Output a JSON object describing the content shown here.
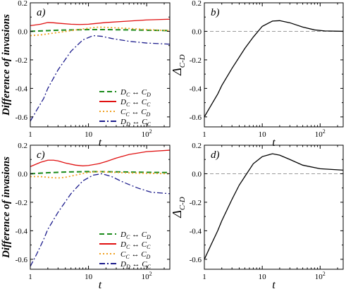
{
  "figure": {
    "ylabel_shared": "Difference of invasions"
  },
  "chart_data": [
    {
      "id": "a",
      "type": "line",
      "panel_label": "a)",
      "xlabel": "t",
      "ylabel": "Difference of invasions",
      "xscale": "log",
      "xlim": [
        1,
        250
      ],
      "ylim": [
        -0.67,
        0.2
      ],
      "xticks": [
        1,
        10,
        100
      ],
      "xtick_labels": [
        {
          "base": "1"
        },
        {
          "base": "10"
        },
        {
          "base": "10",
          "exp": "2"
        }
      ],
      "yticks": [
        -0.6,
        -0.4,
        -0.2,
        0.0,
        0.2
      ],
      "ytick_labels": [
        "-0.6",
        "-0.4",
        "-0.2",
        "0.0",
        "0.2"
      ],
      "legend_placement": "lower-right",
      "series": [
        {
          "name_main": "D",
          "name_sub1": "C",
          "arrow": "↔",
          "name_main2": "C",
          "name_sub2": "D",
          "color": "#1a8a1a",
          "style": "dashed",
          "x": [
            1,
            1.5,
            2,
            3,
            5,
            10,
            20,
            50,
            100,
            250
          ],
          "y": [
            0.0,
            0.003,
            0.005,
            0.008,
            0.01,
            0.012,
            0.012,
            0.01,
            0.008,
            0.005
          ]
        },
        {
          "name_main": "D",
          "name_sub1": "C",
          "arrow": "↔",
          "name_main2": "C",
          "name_sub2": "C",
          "color": "#e01010",
          "style": "solid",
          "x": [
            1,
            1.5,
            2,
            2.5,
            3,
            5,
            7,
            10,
            20,
            50,
            100,
            250
          ],
          "y": [
            0.04,
            0.05,
            0.062,
            0.06,
            0.057,
            0.05,
            0.048,
            0.05,
            0.062,
            0.072,
            0.08,
            0.085
          ]
        },
        {
          "name_main": "C",
          "name_sub1": "C",
          "arrow": "↔",
          "name_main2": "C",
          "name_sub2": "D",
          "color": "#f0a020",
          "style": "dotted",
          "x": [
            1,
            1.5,
            2,
            3,
            5,
            10,
            15,
            20,
            50,
            100,
            250
          ],
          "y": [
            -0.03,
            -0.025,
            -0.018,
            -0.008,
            0.005,
            0.022,
            0.03,
            0.028,
            0.02,
            0.012,
            0.005
          ]
        },
        {
          "name_main": "D",
          "name_sub1": "D",
          "arrow": "↔",
          "name_main2": "C",
          "name_sub2": "C",
          "color": "#1c1c8c",
          "style": "dashdot",
          "x": [
            1,
            1.3,
            1.7,
            2,
            3,
            5,
            8,
            12,
            17,
            25,
            50,
            100,
            250
          ],
          "y": [
            -0.63,
            -0.55,
            -0.47,
            -0.4,
            -0.27,
            -0.14,
            -0.06,
            -0.03,
            -0.035,
            -0.05,
            -0.07,
            -0.082,
            -0.09
          ]
        }
      ]
    },
    {
      "id": "b",
      "type": "line",
      "panel_label": "b)",
      "xlabel": "t",
      "ylabel_main": "Δ",
      "ylabel_sub": "C-D",
      "xscale": "log",
      "xlim": [
        1,
        250
      ],
      "ylim": [
        -0.67,
        0.2
      ],
      "xticks": [
        1,
        10,
        100
      ],
      "xtick_labels": [
        {
          "base": "1"
        },
        {
          "base": "10"
        },
        {
          "base": "10",
          "exp": "2"
        }
      ],
      "yticks": [
        -0.6,
        -0.4,
        -0.2,
        0.0,
        0.2
      ],
      "ytick_labels": [
        "-0.6",
        "-0.4",
        "-0.2",
        "0.0",
        "0.2"
      ],
      "reference_line_y": 0.0,
      "series": [
        {
          "color": "#000000",
          "style": "solid",
          "x": [
            1,
            1.3,
            1.7,
            2,
            3,
            5,
            7,
            10,
            15,
            20,
            30,
            50,
            80,
            120,
            250
          ],
          "y": [
            -0.6,
            -0.52,
            -0.44,
            -0.38,
            -0.26,
            -0.12,
            -0.04,
            0.035,
            0.072,
            0.075,
            0.06,
            0.03,
            0.01,
            0.003,
            0.0
          ]
        }
      ]
    },
    {
      "id": "c",
      "type": "line",
      "panel_label": "c)",
      "xlabel": "t",
      "ylabel": "Difference of invasions",
      "xscale": "log",
      "xlim": [
        1,
        250
      ],
      "ylim": [
        -0.67,
        0.2
      ],
      "xticks": [
        1,
        10,
        100
      ],
      "xtick_labels": [
        {
          "base": "1"
        },
        {
          "base": "10"
        },
        {
          "base": "10",
          "exp": "2"
        }
      ],
      "yticks": [
        -0.6,
        -0.4,
        -0.2,
        0.0,
        0.2
      ],
      "ytick_labels": [
        "-0.6",
        "-0.4",
        "-0.2",
        "0.0",
        "0.2"
      ],
      "legend_placement": "lower-right",
      "series": [
        {
          "name_main": "D",
          "name_sub1": "C",
          "arrow": "↔",
          "name_main2": "C",
          "name_sub2": "D",
          "color": "#1a8a1a",
          "style": "dashed",
          "x": [
            1,
            1.5,
            2,
            3,
            5,
            10,
            20,
            50,
            100,
            250
          ],
          "y": [
            0.0,
            0.004,
            0.007,
            0.01,
            0.013,
            0.015,
            0.014,
            0.012,
            0.01,
            0.008
          ]
        },
        {
          "name_main": "D",
          "name_sub1": "C",
          "arrow": "↔",
          "name_main2": "C",
          "name_sub2": "C",
          "color": "#e01010",
          "style": "solid",
          "x": [
            1,
            1.5,
            2,
            2.5,
            3,
            4,
            6,
            8,
            10,
            15,
            20,
            30,
            50,
            100,
            250
          ],
          "y": [
            0.05,
            0.08,
            0.095,
            0.095,
            0.09,
            0.075,
            0.06,
            0.055,
            0.058,
            0.07,
            0.085,
            0.11,
            0.135,
            0.155,
            0.165
          ]
        },
        {
          "name_main": "C",
          "name_sub1": "C",
          "arrow": "↔",
          "name_main2": "C",
          "name_sub2": "D",
          "color": "#f0a020",
          "style": "dotted",
          "x": [
            1,
            1.5,
            2,
            3,
            4,
            6,
            10,
            15,
            20,
            50,
            100,
            250
          ],
          "y": [
            -0.02,
            -0.02,
            -0.025,
            -0.03,
            -0.025,
            -0.01,
            0.01,
            0.015,
            0.012,
            0.006,
            0.003,
            0.0
          ]
        },
        {
          "name_main": "D",
          "name_sub1": "D",
          "arrow": "↔",
          "name_main2": "C",
          "name_sub2": "C",
          "color": "#1c1c8c",
          "style": "dashdot",
          "x": [
            1,
            1.3,
            1.7,
            2,
            3,
            5,
            8,
            12,
            17,
            25,
            40,
            70,
            120,
            250
          ],
          "y": [
            -0.65,
            -0.56,
            -0.46,
            -0.39,
            -0.27,
            -0.14,
            -0.05,
            -0.01,
            0.0,
            -0.02,
            -0.06,
            -0.1,
            -0.13,
            -0.14
          ]
        }
      ]
    },
    {
      "id": "d",
      "type": "line",
      "panel_label": "d)",
      "xlabel": "t",
      "ylabel_main": "Δ",
      "ylabel_sub": "C-D",
      "xscale": "log",
      "xlim": [
        1,
        250
      ],
      "ylim": [
        -0.67,
        0.2
      ],
      "xticks": [
        1,
        10,
        100
      ],
      "xtick_labels": [
        {
          "base": "1"
        },
        {
          "base": "10"
        },
        {
          "base": "10",
          "exp": "2"
        }
      ],
      "yticks": [
        -0.6,
        -0.4,
        -0.2,
        0.0,
        0.2
      ],
      "ytick_labels": [
        "-0.6",
        "-0.4",
        "-0.2",
        "0.0",
        "0.2"
      ],
      "reference_line_y": 0.0,
      "series": [
        {
          "color": "#000000",
          "style": "solid",
          "x": [
            1,
            1.3,
            1.7,
            2,
            3,
            4,
            5,
            7,
            10,
            15,
            20,
            30,
            50,
            100,
            250
          ],
          "y": [
            -0.6,
            -0.5,
            -0.4,
            -0.33,
            -0.18,
            -0.08,
            -0.02,
            0.07,
            0.12,
            0.14,
            0.13,
            0.1,
            0.06,
            0.035,
            0.025
          ]
        }
      ]
    }
  ]
}
